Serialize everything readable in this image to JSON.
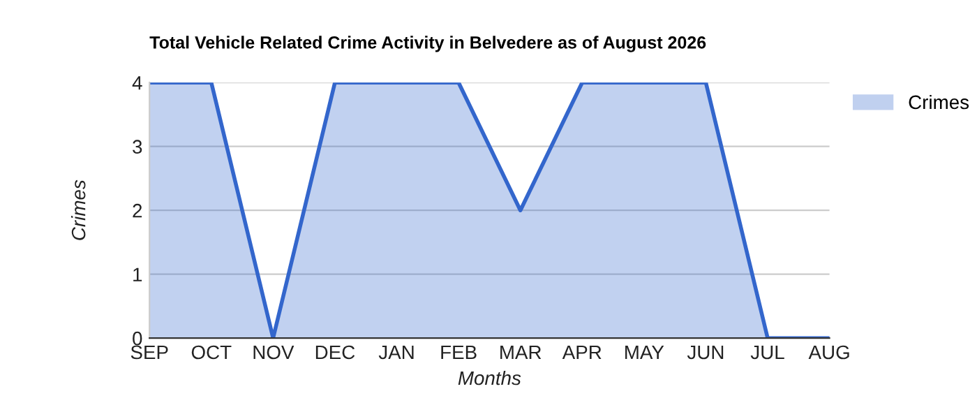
{
  "chart_data": {
    "type": "area",
    "title": "Total Vehicle Related Crime Activity in Belvedere as of August 2026",
    "xlabel": "Months",
    "ylabel": "Crimes",
    "categories": [
      "SEP",
      "OCT",
      "NOV",
      "DEC",
      "JAN",
      "FEB",
      "MAR",
      "APR",
      "MAY",
      "JUN",
      "JUL",
      "AUG"
    ],
    "series": [
      {
        "name": "Crimes",
        "color": "#3366cc",
        "values": [
          4,
          4,
          0,
          4,
          4,
          4,
          2,
          4,
          4,
          4,
          0,
          0
        ]
      }
    ],
    "ylim": [
      0,
      4
    ],
    "yticks": [
      0,
      1,
      2,
      3,
      4
    ],
    "grid": "y",
    "legend": "top right"
  }
}
